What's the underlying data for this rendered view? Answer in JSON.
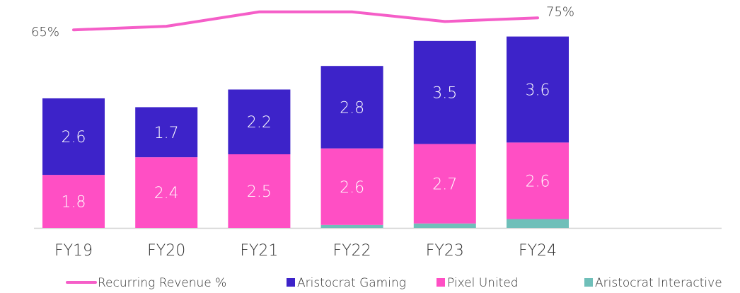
{
  "chart_data": {
    "type": "bar",
    "categories": [
      "FY19",
      "FY20",
      "FY21",
      "FY22",
      "FY23",
      "FY24"
    ],
    "stacked": true,
    "ylim": [
      0,
      7.5
    ],
    "y2lim": [
      -100,
      84
    ],
    "legend": "bottom",
    "series": [
      {
        "name": "Recurring Revenue %",
        "type": "line",
        "axis": "y2",
        "color": "#f55ec8",
        "values": [
          65,
          68,
          80,
          80,
          72,
          75
        ],
        "value_labels": [
          "65%",
          null,
          null,
          null,
          null,
          "75%"
        ]
      },
      {
        "name": "Aristocrat Interactive",
        "type": "bar",
        "color": "#6fbfb9",
        "values": [
          0,
          0,
          0,
          0.1,
          0.15,
          0.3
        ]
      },
      {
        "name": "Pixel United",
        "type": "bar",
        "color": "#ff4fc4",
        "values": [
          1.8,
          2.4,
          2.5,
          2.6,
          2.7,
          2.6
        ]
      },
      {
        "name": "Aristocrat Gaming",
        "type": "bar",
        "color": "#3d23c9",
        "values": [
          2.6,
          1.7,
          2.2,
          2.8,
          3.5,
          3.6
        ]
      }
    ]
  }
}
